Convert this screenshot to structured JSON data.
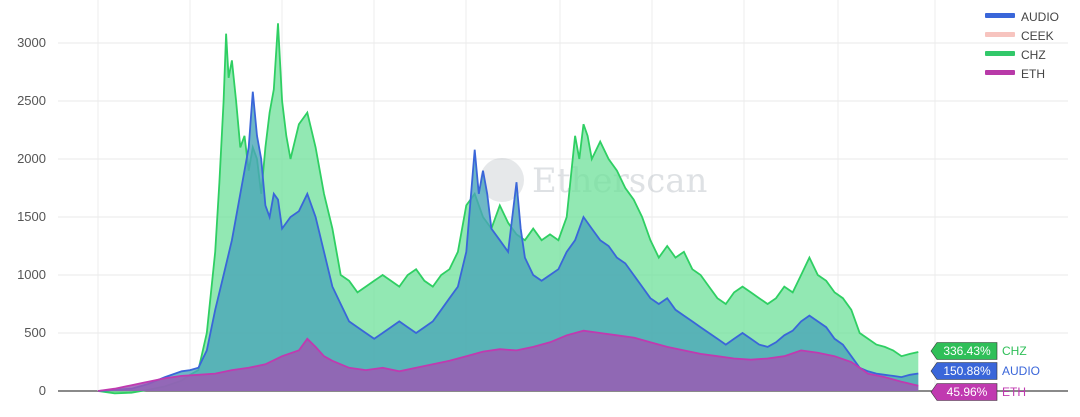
{
  "watermark": "Etherscan",
  "legend": {
    "items": [
      {
        "name": "AUDIO",
        "color": "#3a66d9",
        "faded": false
      },
      {
        "name": "CEEK",
        "color": "#f08a80",
        "faded": true
      },
      {
        "name": "CHZ",
        "color": "#32c86a",
        "faded": false
      },
      {
        "name": "ETH",
        "color": "#b83aa8",
        "faded": false
      }
    ]
  },
  "end_labels": [
    {
      "series": "CHZ",
      "value_text": "336.43%",
      "name": "CHZ",
      "color": "#2fbf58",
      "y": 336
    },
    {
      "series": "AUDIO",
      "value_text": "150.88%",
      "name": "AUDIO",
      "color": "#3a66d9",
      "y": 151
    },
    {
      "series": "ETH",
      "value_text": "45.96%",
      "name": "ETH",
      "color": "#c03ab0",
      "y": 46
    }
  ],
  "chart_data": {
    "type": "area",
    "title": "",
    "xlabel": "",
    "ylabel": "",
    "ylim": [
      -30,
      3200
    ],
    "yticks": [
      0,
      500,
      1000,
      1500,
      2000,
      2500,
      3000
    ],
    "grid": true,
    "legend_position": "top-right",
    "x_index_range": [
      0,
      100
    ],
    "series": [
      {
        "name": "CHZ",
        "color": "#32c86a",
        "points": [
          [
            0,
            0
          ],
          [
            2,
            -20
          ],
          [
            4,
            -15
          ],
          [
            6,
            10
          ],
          [
            8,
            40
          ],
          [
            10,
            90
          ],
          [
            11,
            140
          ],
          [
            12,
            180
          ],
          [
            13,
            500
          ],
          [
            14,
            1200
          ],
          [
            14.5,
            1800
          ],
          [
            15,
            2500
          ],
          [
            15.3,
            3080
          ],
          [
            15.6,
            2700
          ],
          [
            16,
            2850
          ],
          [
            16.5,
            2500
          ],
          [
            17,
            2100
          ],
          [
            17.5,
            2200
          ],
          [
            18,
            1900
          ],
          [
            18.5,
            2100
          ],
          [
            19,
            2000
          ],
          [
            19.5,
            1700
          ],
          [
            20,
            2100
          ],
          [
            20.5,
            2400
          ],
          [
            21,
            2600
          ],
          [
            21.5,
            3170
          ],
          [
            22,
            2500
          ],
          [
            22.5,
            2200
          ],
          [
            23,
            2000
          ],
          [
            24,
            2300
          ],
          [
            25,
            2400
          ],
          [
            26,
            2100
          ],
          [
            27,
            1700
          ],
          [
            28,
            1400
          ],
          [
            29,
            1000
          ],
          [
            30,
            950
          ],
          [
            31,
            850
          ],
          [
            32,
            900
          ],
          [
            33,
            950
          ],
          [
            34,
            1000
          ],
          [
            35,
            950
          ],
          [
            36,
            900
          ],
          [
            37,
            1000
          ],
          [
            38,
            1050
          ],
          [
            39,
            950
          ],
          [
            40,
            900
          ],
          [
            41,
            1000
          ],
          [
            42,
            1050
          ],
          [
            43,
            1200
          ],
          [
            44,
            1600
          ],
          [
            45,
            1700
          ],
          [
            46,
            1500
          ],
          [
            47,
            1400
          ],
          [
            48,
            1600
          ],
          [
            49,
            1450
          ],
          [
            50,
            1350
          ],
          [
            51,
            1300
          ],
          [
            52,
            1400
          ],
          [
            53,
            1300
          ],
          [
            54,
            1350
          ],
          [
            55,
            1300
          ],
          [
            56,
            1500
          ],
          [
            57,
            2200
          ],
          [
            57.5,
            2000
          ],
          [
            58,
            2300
          ],
          [
            58.5,
            2200
          ],
          [
            59,
            2000
          ],
          [
            60,
            2150
          ],
          [
            61,
            2000
          ],
          [
            62,
            1900
          ],
          [
            63,
            1750
          ],
          [
            64,
            1650
          ],
          [
            65,
            1500
          ],
          [
            66,
            1300
          ],
          [
            67,
            1150
          ],
          [
            68,
            1250
          ],
          [
            69,
            1150
          ],
          [
            70,
            1200
          ],
          [
            71,
            1050
          ],
          [
            72,
            1000
          ],
          [
            73,
            900
          ],
          [
            74,
            800
          ],
          [
            75,
            750
          ],
          [
            76,
            850
          ],
          [
            77,
            900
          ],
          [
            78,
            850
          ],
          [
            79,
            800
          ],
          [
            80,
            750
          ],
          [
            81,
            800
          ],
          [
            82,
            900
          ],
          [
            83,
            850
          ],
          [
            84,
            1000
          ],
          [
            85,
            1150
          ],
          [
            86,
            1000
          ],
          [
            87,
            950
          ],
          [
            88,
            850
          ],
          [
            89,
            800
          ],
          [
            90,
            700
          ],
          [
            91,
            500
          ],
          [
            92,
            450
          ],
          [
            93,
            400
          ],
          [
            94,
            380
          ],
          [
            95,
            350
          ],
          [
            96,
            300
          ],
          [
            97,
            320
          ],
          [
            98,
            336
          ]
        ]
      },
      {
        "name": "AUDIO",
        "color": "#3a66d9",
        "points": [
          [
            0,
            0
          ],
          [
            2,
            10
          ],
          [
            4,
            20
          ],
          [
            6,
            60
          ],
          [
            8,
            120
          ],
          [
            10,
            170
          ],
          [
            11,
            180
          ],
          [
            12,
            200
          ],
          [
            13,
            350
          ],
          [
            14,
            700
          ],
          [
            15,
            1000
          ],
          [
            16,
            1300
          ],
          [
            17,
            1700
          ],
          [
            18,
            2100
          ],
          [
            18.5,
            2580
          ],
          [
            19,
            2200
          ],
          [
            19.5,
            2000
          ],
          [
            20,
            1600
          ],
          [
            20.5,
            1500
          ],
          [
            21,
            1700
          ],
          [
            21.5,
            1650
          ],
          [
            22,
            1400
          ],
          [
            23,
            1500
          ],
          [
            24,
            1550
          ],
          [
            25,
            1700
          ],
          [
            26,
            1500
          ],
          [
            27,
            1200
          ],
          [
            28,
            900
          ],
          [
            29,
            750
          ],
          [
            30,
            600
          ],
          [
            31,
            550
          ],
          [
            32,
            500
          ],
          [
            33,
            450
          ],
          [
            34,
            500
          ],
          [
            35,
            550
          ],
          [
            36,
            600
          ],
          [
            37,
            550
          ],
          [
            38,
            500
          ],
          [
            39,
            550
          ],
          [
            40,
            600
          ],
          [
            41,
            700
          ],
          [
            42,
            800
          ],
          [
            43,
            900
          ],
          [
            44,
            1200
          ],
          [
            45,
            2080
          ],
          [
            45.5,
            1700
          ],
          [
            46,
            1900
          ],
          [
            46.5,
            1700
          ],
          [
            47,
            1400
          ],
          [
            48,
            1300
          ],
          [
            49,
            1200
          ],
          [
            50,
            1800
          ],
          [
            50.5,
            1400
          ],
          [
            51,
            1150
          ],
          [
            52,
            1000
          ],
          [
            53,
            950
          ],
          [
            54,
            1000
          ],
          [
            55,
            1050
          ],
          [
            56,
            1200
          ],
          [
            57,
            1300
          ],
          [
            58,
            1500
          ],
          [
            59,
            1400
          ],
          [
            60,
            1300
          ],
          [
            61,
            1250
          ],
          [
            62,
            1150
          ],
          [
            63,
            1100
          ],
          [
            64,
            1000
          ],
          [
            65,
            900
          ],
          [
            66,
            800
          ],
          [
            67,
            750
          ],
          [
            68,
            800
          ],
          [
            69,
            700
          ],
          [
            70,
            650
          ],
          [
            71,
            600
          ],
          [
            72,
            550
          ],
          [
            73,
            500
          ],
          [
            74,
            450
          ],
          [
            75,
            400
          ],
          [
            76,
            450
          ],
          [
            77,
            500
          ],
          [
            78,
            450
          ],
          [
            79,
            400
          ],
          [
            80,
            380
          ],
          [
            81,
            420
          ],
          [
            82,
            480
          ],
          [
            83,
            520
          ],
          [
            84,
            600
          ],
          [
            85,
            650
          ],
          [
            86,
            600
          ],
          [
            87,
            550
          ],
          [
            88,
            450
          ],
          [
            89,
            400
          ],
          [
            90,
            300
          ],
          [
            91,
            200
          ],
          [
            92,
            170
          ],
          [
            93,
            150
          ],
          [
            94,
            140
          ],
          [
            95,
            130
          ],
          [
            96,
            120
          ],
          [
            97,
            140
          ],
          [
            98,
            151
          ]
        ]
      },
      {
        "name": "ETH",
        "color": "#b83aa8",
        "points": [
          [
            0,
            0
          ],
          [
            2,
            20
          ],
          [
            4,
            50
          ],
          [
            6,
            80
          ],
          [
            8,
            110
          ],
          [
            10,
            130
          ],
          [
            12,
            140
          ],
          [
            14,
            150
          ],
          [
            16,
            180
          ],
          [
            18,
            200
          ],
          [
            20,
            230
          ],
          [
            22,
            300
          ],
          [
            24,
            350
          ],
          [
            25,
            450
          ],
          [
            26,
            380
          ],
          [
            27,
            300
          ],
          [
            28,
            260
          ],
          [
            30,
            200
          ],
          [
            32,
            180
          ],
          [
            34,
            200
          ],
          [
            36,
            170
          ],
          [
            38,
            200
          ],
          [
            40,
            230
          ],
          [
            42,
            260
          ],
          [
            44,
            300
          ],
          [
            46,
            340
          ],
          [
            48,
            360
          ],
          [
            50,
            350
          ],
          [
            52,
            380
          ],
          [
            54,
            420
          ],
          [
            56,
            480
          ],
          [
            58,
            520
          ],
          [
            60,
            500
          ],
          [
            62,
            480
          ],
          [
            64,
            460
          ],
          [
            66,
            420
          ],
          [
            68,
            380
          ],
          [
            70,
            350
          ],
          [
            72,
            320
          ],
          [
            74,
            300
          ],
          [
            76,
            280
          ],
          [
            78,
            270
          ],
          [
            80,
            280
          ],
          [
            82,
            300
          ],
          [
            84,
            350
          ],
          [
            86,
            330
          ],
          [
            88,
            300
          ],
          [
            90,
            250
          ],
          [
            91,
            200
          ],
          [
            92,
            150
          ],
          [
            94,
            120
          ],
          [
            96,
            80
          ],
          [
            98,
            46
          ]
        ]
      }
    ]
  }
}
